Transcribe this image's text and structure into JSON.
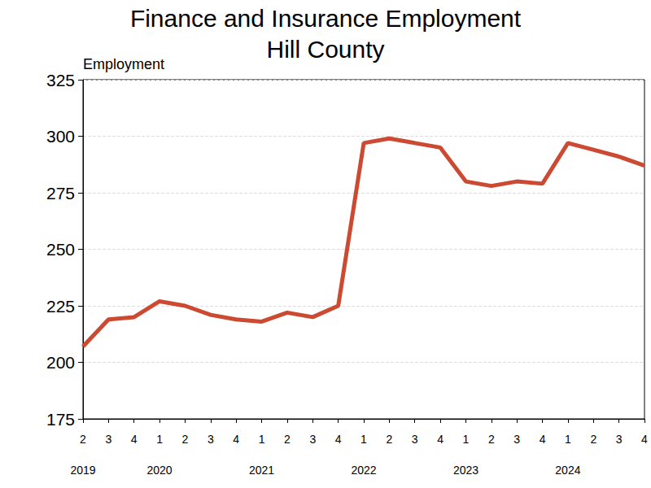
{
  "chart_data": {
    "type": "line",
    "title": "Finance and Insurance Employment",
    "subtitle": "Hill County",
    "y_label": "Employment",
    "categories": [
      "2\n2019",
      "3",
      "4",
      "1\n2020",
      "2",
      "3",
      "4",
      "1\n2021",
      "2",
      "3",
      "4",
      "1\n2022",
      "2",
      "3",
      "4",
      "1\n2023",
      "2",
      "3",
      "4",
      "1\n2024",
      "2",
      "3",
      "4"
    ],
    "values": [
      207,
      219,
      220,
      227,
      225,
      221,
      219,
      218,
      222,
      220,
      225,
      297,
      299,
      297,
      295,
      280,
      278,
      280,
      279,
      297,
      294,
      291,
      287
    ],
    "color": "#cc4a31",
    "ylim": [
      175,
      325
    ],
    "yticks": [
      175,
      200,
      225,
      250,
      275,
      300,
      325
    ],
    "grid": true
  }
}
